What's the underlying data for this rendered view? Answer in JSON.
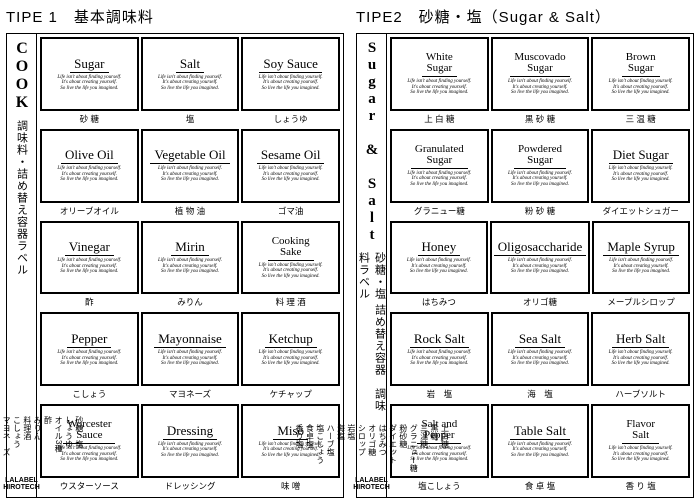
{
  "tagline": "Life isn't about finding yourself.\nIt's about creating yourself.\nSo live the life you imagined.",
  "brand": {
    "line1": "LALABEL",
    "line2": "HIROTECH"
  },
  "panels": [
    {
      "header": "TIPE 1　基本調味料",
      "strip": {
        "title": "COOK",
        "titleMode": "h",
        "sub": "調味料・詰め替え容器ラベル",
        "small": "砂糖　塩\nしょうゆ\nオイル3種\n酢\nみりん\n料理酒\nこしょう\nマヨネーズ\nケチャップ\nウスターソース\nドレッシング\n味噌"
      },
      "rows": [
        [
          {
            "t": "Sugar",
            "c": "砂 糖"
          },
          {
            "t": "Salt",
            "c": "塩"
          },
          {
            "t": "Soy Sauce",
            "c": "しょうゆ"
          }
        ],
        [
          {
            "t": "Olive Oil",
            "c": "オリーブオイル"
          },
          {
            "t": "Vegetable Oil",
            "c": "植 物 油"
          },
          {
            "t": "Sesame Oil",
            "c": "ゴマ油"
          }
        ],
        [
          {
            "t": "Vinegar",
            "c": "酢"
          },
          {
            "t": "Mirin",
            "c": "みりん"
          },
          {
            "t": "Cooking\nSake",
            "c": "料 理 酒"
          }
        ],
        [
          {
            "t": "Pepper",
            "c": "こしょう"
          },
          {
            "t": "Mayonnaise",
            "c": "マヨネーズ"
          },
          {
            "t": "Ketchup",
            "c": "ケチャップ"
          }
        ],
        [
          {
            "t": "Worcester\nSauce",
            "c": "ウスターソース"
          },
          {
            "t": "Dressing",
            "c": "ドレッシング"
          },
          {
            "t": "Miso",
            "c": "味 噌"
          }
        ]
      ]
    },
    {
      "header": "TIPE2　砂糖・塩（Sugar & Salt）",
      "strip": {
        "title": "Sugar & Salt",
        "titleMode": "v",
        "sub": "砂糖・塩 詰め替え容器　調味料ラベル",
        "small": "上白糖\n黒糖\n三温糖\nグラニュー糖\n粉砂糖\nダイエット\nはちみつ\nオリゴ糖\nシロップ\n岩塩\n海塩\nハーブ塩\n塩こしょう\n食卓塩\n香り塩"
      },
      "rows": [
        [
          {
            "t": "White\nSugar",
            "c": "上 白 糖"
          },
          {
            "t": "Muscovado\nSugar",
            "c": "黒 砂 糖"
          },
          {
            "t": "Brown\nSugar",
            "c": "三 温 糖"
          }
        ],
        [
          {
            "t": "Granulated\nSugar",
            "c": "グラニュー糖"
          },
          {
            "t": "Powdered\nSugar",
            "c": "粉 砂 糖"
          },
          {
            "t": "Diet Sugar",
            "c": "ダイエットシュガー"
          }
        ],
        [
          {
            "t": "Honey",
            "c": "はちみつ"
          },
          {
            "t": "Oligosaccharide",
            "c": "オリゴ糖"
          },
          {
            "t": "Maple Syrup",
            "c": "メープルシロップ"
          }
        ],
        [
          {
            "t": "Rock Salt",
            "c": "岩　塩"
          },
          {
            "t": "Sea Salt",
            "c": "海　塩"
          },
          {
            "t": "Herb Salt",
            "c": "ハーブソルト"
          }
        ],
        [
          {
            "t": "Salt and\nPepper",
            "c": "塩こしょう"
          },
          {
            "t": "Table Salt",
            "c": "食 卓 塩"
          },
          {
            "t": "Flavor\nSalt",
            "c": "香 り 塩"
          }
        ]
      ]
    }
  ]
}
